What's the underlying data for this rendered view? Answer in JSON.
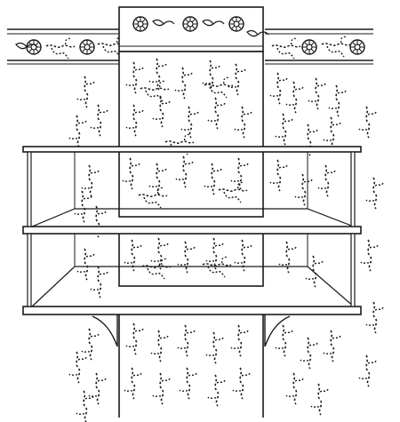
{
  "illustration": {
    "subject": "shelf-bracket-against-patterned-wall",
    "ink_color": "#1a1a1a",
    "paper_color": "#ffffff",
    "shelf_count": 2
  }
}
